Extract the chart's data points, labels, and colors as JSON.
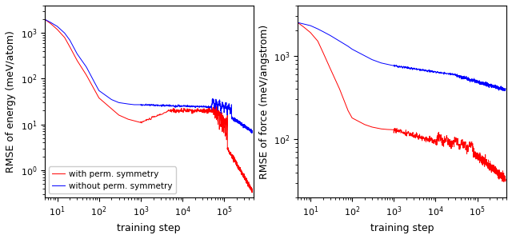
{
  "subplot1": {
    "ylabel": "RMSE of energy (meV/atom)",
    "xlabel": "training step",
    "legend": [
      "with perm. symmetry",
      "without perm. symmetry"
    ],
    "colors": [
      "red",
      "blue"
    ]
  },
  "subplot2": {
    "ylabel": "RMSE of force (meV/angstrom)",
    "xlabel": "training step",
    "colors": [
      "red",
      "blue"
    ]
  }
}
